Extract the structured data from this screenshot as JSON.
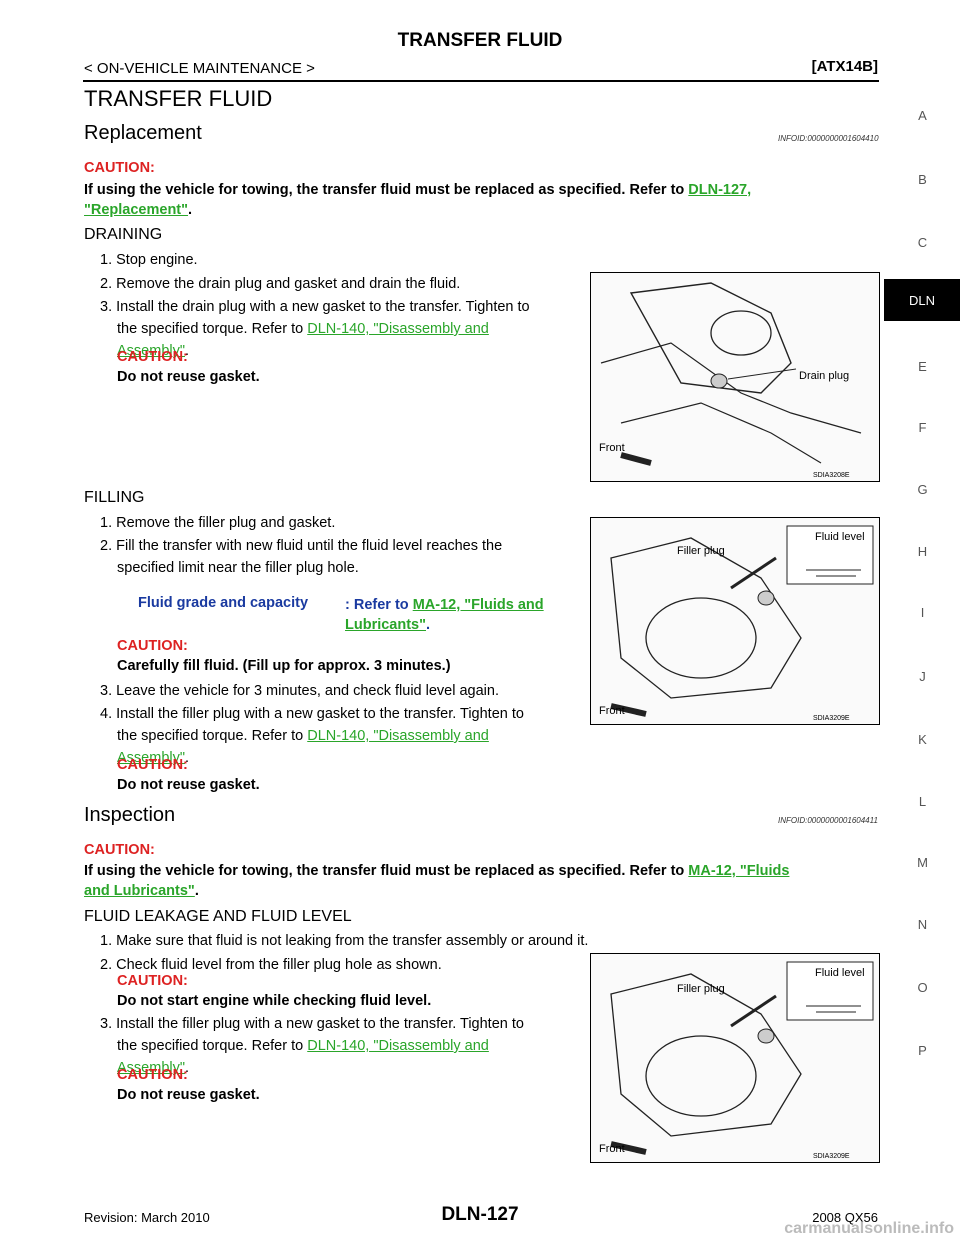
{
  "header": {
    "title": "TRANSFER FLUID",
    "breadcrumb": "< ON-VEHICLE MAINTENANCE >",
    "code": "[ATX14B]"
  },
  "page_title": "TRANSFER FLUID",
  "replacement": {
    "title": "Replacement",
    "infoid": "INFOID:0000000001604410",
    "caution_label": "CAUTION:",
    "caution_text": "If using the vehicle for towing, the transfer fluid must be replaced as specified. Refer to",
    "caution_link_a": "DLN-127,",
    "caution_link_b": "\"Replacement\"",
    "draining": {
      "title": "DRAINING",
      "step1": "1. Stop engine.",
      "step2": "2. Remove the drain plug and gasket and drain the fluid.",
      "step3a": "3. Install the drain plug with a new gasket to the transfer. Tighten to",
      "step3b": "the specified torque. Refer to",
      "step3_link_a": "DLN-140, \"Disassembly and",
      "step3_link_b": "Assembly\"",
      "caution_label": "CAUTION:",
      "caution_text": "Do not reuse gasket.",
      "figure": {
        "label_drain": "Drain plug",
        "label_front": "Front",
        "code": "SDIA3208E"
      }
    },
    "filling": {
      "title": "FILLING",
      "step1": "1. Remove the filler plug and gasket.",
      "step2a": "2. Fill the transfer with new fluid until the fluid level reaches the",
      "step2b": "specified limit near the filler plug hole.",
      "spec_label": "Fluid grade and capacity",
      "spec_refer": ": Refer to",
      "spec_link_a": "MA-12, \"Fluids and",
      "spec_link_b": "Lubricants\"",
      "caution_label": "CAUTION:",
      "caution_text": "Carefully fill fluid. (Fill up for approx. 3 minutes.)",
      "step3": "3. Leave the vehicle for 3 minutes, and check fluid level again.",
      "step4a": "4. Install the filler plug with a new gasket to the transfer. Tighten to",
      "step4b": "the specified torque. Refer to",
      "step4_link_a": "DLN-140, \"Disassembly and",
      "step4_link_b": "Assembly\"",
      "caution2_label": "CAUTION:",
      "caution2_text": "Do not reuse gasket.",
      "figure": {
        "label_filler": "Filler plug",
        "label_level": "Fluid level",
        "label_front": "Front",
        "code": "SDIA3209E"
      }
    }
  },
  "inspection": {
    "title": "Inspection",
    "infoid": "INFOID:0000000001604411",
    "caution_label": "CAUTION:",
    "caution_text": "If using the vehicle for towing, the transfer fluid must be replaced as specified. Refer to",
    "caution_link_a": "MA-12, \"Fluids",
    "caution_link_b": "and Lubricants\"",
    "leakage": {
      "title": "FLUID LEAKAGE AND FLUID LEVEL",
      "step1": "1. Make sure that fluid is not leaking from the transfer assembly or around it.",
      "step2": "2. Check fluid level from the filler plug hole as shown.",
      "caution_label": "CAUTION:",
      "caution_text": "Do not start engine while checking fluid level.",
      "step3a": "3. Install the filler plug with a new gasket to the transfer. Tighten to",
      "step3b": "the specified torque. Refer to",
      "step3_link_a": "DLN-140, \"Disassembly and",
      "step3_link_b": "Assembly\"",
      "caution2_label": "CAUTION:",
      "caution2_text": "Do not reuse gasket.",
      "figure": {
        "label_filler": "Filler plug",
        "label_level": "Fluid level",
        "label_front": "Front",
        "code": "SDIA3209E"
      }
    }
  },
  "sidebar": [
    "A",
    "B",
    "C",
    "DLN",
    "E",
    "F",
    "G",
    "H",
    "I",
    "J",
    "K",
    "L",
    "M",
    "N",
    "O",
    "P"
  ],
  "sidebar_active": "DLN",
  "footer": {
    "revision": "Revision: March 2010",
    "page": "DLN-127",
    "model": "2008 QX56",
    "watermark": "carmanualsonline.info"
  }
}
